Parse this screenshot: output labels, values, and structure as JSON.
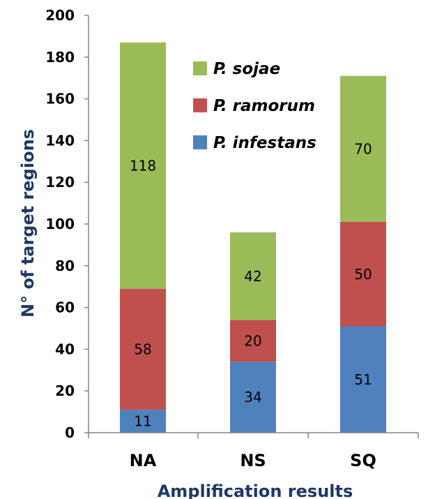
{
  "chart_data": {
    "type": "bar",
    "stacked": true,
    "title": "",
    "xlabel": "Amplification results",
    "ylabel": "N° of target regions",
    "categories": [
      "NA",
      "NS",
      "SQ"
    ],
    "ylim": [
      0,
      200
    ],
    "yticks": [
      0,
      20,
      40,
      60,
      80,
      100,
      120,
      140,
      160,
      180,
      200
    ],
    "grid": false,
    "legend_position": "top-right",
    "series": [
      {
        "name": "P. infestans",
        "color": "#4f81bd",
        "values": [
          11,
          34,
          51
        ]
      },
      {
        "name": "P. ramorum",
        "color": "#c0504d",
        "values": [
          58,
          20,
          50
        ]
      },
      {
        "name": "P. sojae",
        "color": "#9bbb59",
        "values": [
          118,
          42,
          70
        ]
      }
    ],
    "legend_order": [
      "P. sojae",
      "P. ramorum",
      "P. infestans"
    ]
  }
}
